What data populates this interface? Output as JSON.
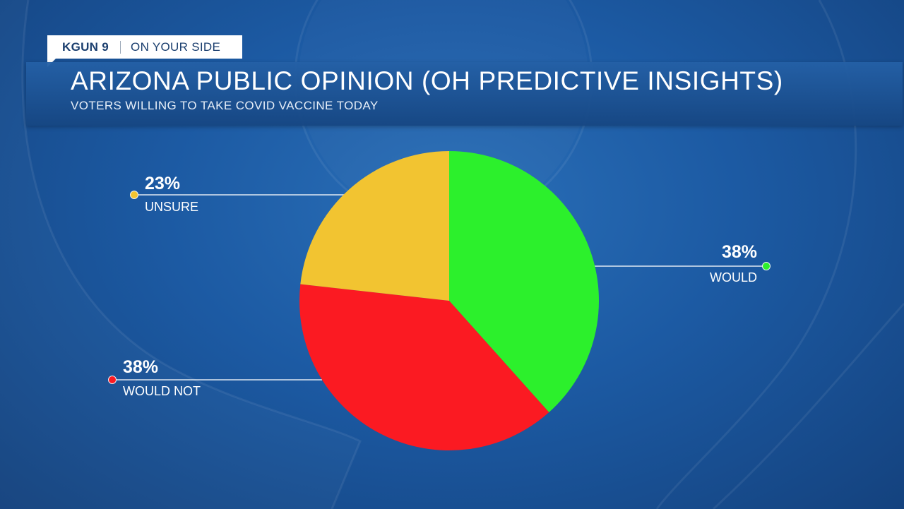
{
  "header": {
    "station": "KGUN 9",
    "tagline": "ON YOUR SIDE"
  },
  "colors": {
    "would": "#2cf02c",
    "would_not": "#fb1a22",
    "unsure": "#f2c431",
    "background": "#1c5aa3"
  },
  "chart_data": {
    "type": "pie",
    "title": "ARIZONA PUBLIC OPINION (OH PREDICTIVE INSIGHTS)",
    "subtitle": "VOTERS WILLING TO TAKE COVID VACCINE TODAY",
    "slices": [
      {
        "label": "WOULD",
        "value": 38,
        "value_label": "38%",
        "color": "#2cf02c"
      },
      {
        "label": "WOULD NOT",
        "value": 38,
        "value_label": "38%",
        "color": "#fb1a22"
      },
      {
        "label": "UNSURE",
        "value": 23,
        "value_label": "23%",
        "color": "#f2c431"
      }
    ],
    "start_angle": "12 o'clock",
    "direction": "clockwise"
  }
}
